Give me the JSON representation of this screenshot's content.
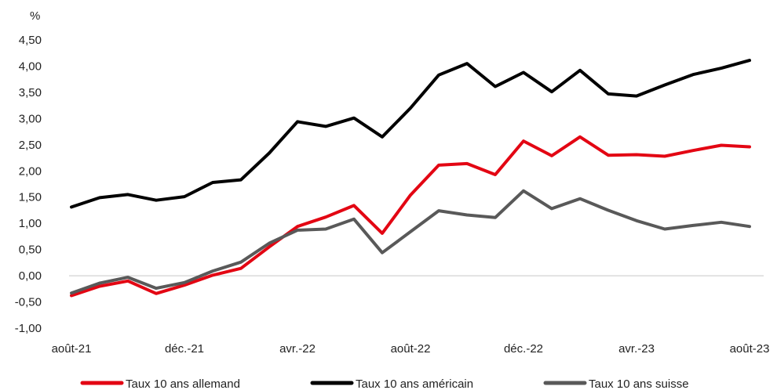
{
  "chart_data": {
    "type": "line",
    "ylabel": "%",
    "ylim": [
      -1.0,
      4.5
    ],
    "yticks": [
      "-1,00",
      "-0,50",
      "0,00",
      "0,50",
      "1,00",
      "1,50",
      "2,00",
      "2,50",
      "3,00",
      "3,50",
      "4,00",
      "4,50"
    ],
    "ytick_values": [
      -1.0,
      -0.5,
      0.0,
      0.5,
      1.0,
      1.5,
      2.0,
      2.5,
      3.0,
      3.5,
      4.0,
      4.5
    ],
    "x": [
      "août-21",
      "sept.-21",
      "oct.-21",
      "nov.-21",
      "déc.-21",
      "janv.-22",
      "févr.-22",
      "mars-22",
      "avr.-22",
      "mai-22",
      "juin-22",
      "juil.-22",
      "août-22",
      "sept.-22",
      "oct.-22",
      "nov.-22",
      "déc.-22",
      "janv.-23",
      "févr.-23",
      "mars-23",
      "avr.-23",
      "mai-23",
      "juin-23",
      "juil.-23",
      "août-23"
    ],
    "xtick_labels": [
      "août-21",
      "déc.-21",
      "avr.-22",
      "août-22",
      "déc.-22",
      "avr.-23",
      "août-23"
    ],
    "xtick_indices": [
      0,
      4,
      8,
      12,
      16,
      20,
      24
    ],
    "zero_line": true,
    "grid": false,
    "legend_position": "bottom",
    "series": [
      {
        "name": "Taux 10 ans allemand",
        "color": "#e30613",
        "values": [
          -0.38,
          -0.2,
          -0.1,
          -0.34,
          -0.18,
          0.01,
          0.14,
          0.55,
          0.94,
          1.12,
          1.34,
          0.81,
          1.54,
          2.11,
          2.14,
          1.93,
          2.57,
          2.29,
          2.65,
          2.3,
          2.31,
          2.28,
          2.39,
          2.49,
          2.46
        ]
      },
      {
        "name": "Taux 10 ans américain",
        "color": "#000000",
        "values": [
          1.31,
          1.49,
          1.55,
          1.44,
          1.51,
          1.78,
          1.83,
          2.34,
          2.94,
          2.85,
          3.01,
          2.65,
          3.2,
          3.83,
          4.05,
          3.61,
          3.88,
          3.51,
          3.92,
          3.47,
          3.43,
          3.64,
          3.84,
          3.96,
          4.11
        ]
      },
      {
        "name": "Taux 10 ans suisse",
        "color": "#595959",
        "values": [
          -0.33,
          -0.14,
          -0.03,
          -0.24,
          -0.13,
          0.09,
          0.26,
          0.62,
          0.87,
          0.89,
          1.08,
          0.44,
          0.84,
          1.24,
          1.16,
          1.11,
          1.62,
          1.28,
          1.47,
          1.25,
          1.05,
          0.89,
          0.96,
          1.02,
          0.94
        ]
      }
    ]
  }
}
